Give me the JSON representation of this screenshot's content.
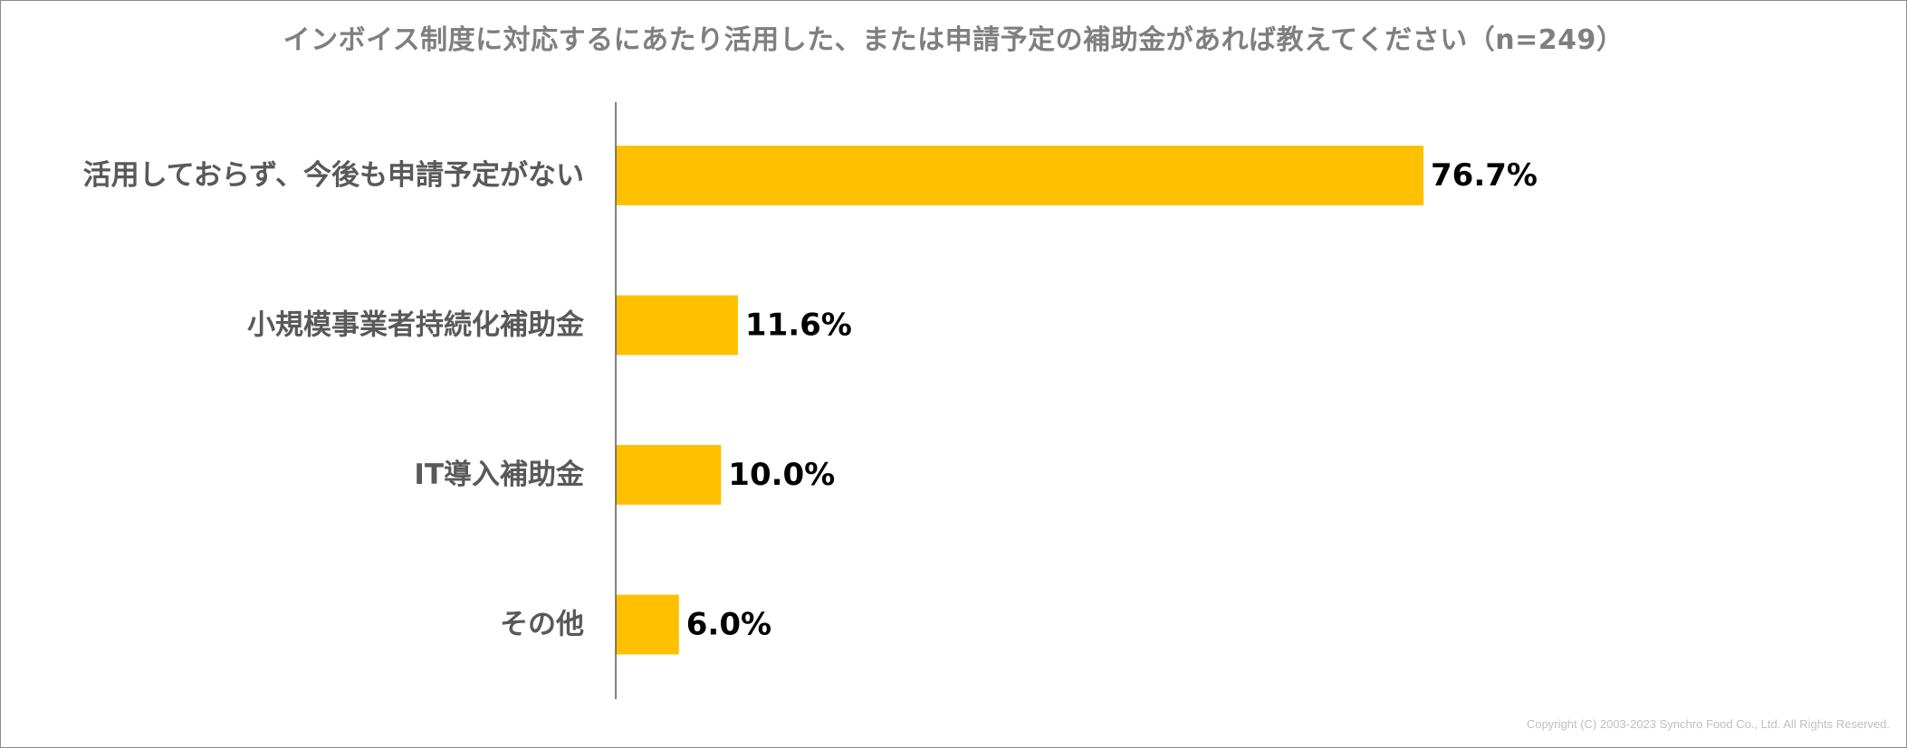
{
  "chart_data": {
    "type": "bar",
    "orientation": "horizontal",
    "title": "インボイス制度に対応するにあたり活用した、または申請予定の補助金があれば教えてください（n=249）",
    "categories": [
      "活用しておらず、今後も申請予定がない",
      "小規模事業者持続化補助金",
      "IT導入補助金",
      "その他"
    ],
    "values": [
      76.7,
      11.6,
      10.0,
      6.0
    ],
    "value_labels": [
      "76.7%",
      "11.6%",
      "10.0%",
      "6.0%"
    ],
    "unit": "%",
    "xlim": [
      0,
      100
    ],
    "grid": false,
    "legend": "none",
    "xlabel": "",
    "ylabel": ""
  },
  "colors": {
    "bar": "#FFC000",
    "category_text": "#595959",
    "value_text": "#000000",
    "axis": "#595959",
    "title_text": "#7F7F7F"
  },
  "copyright": "Copyright (C) 2003-2023  Synchro Food Co., Ltd. All Rights Reserved."
}
